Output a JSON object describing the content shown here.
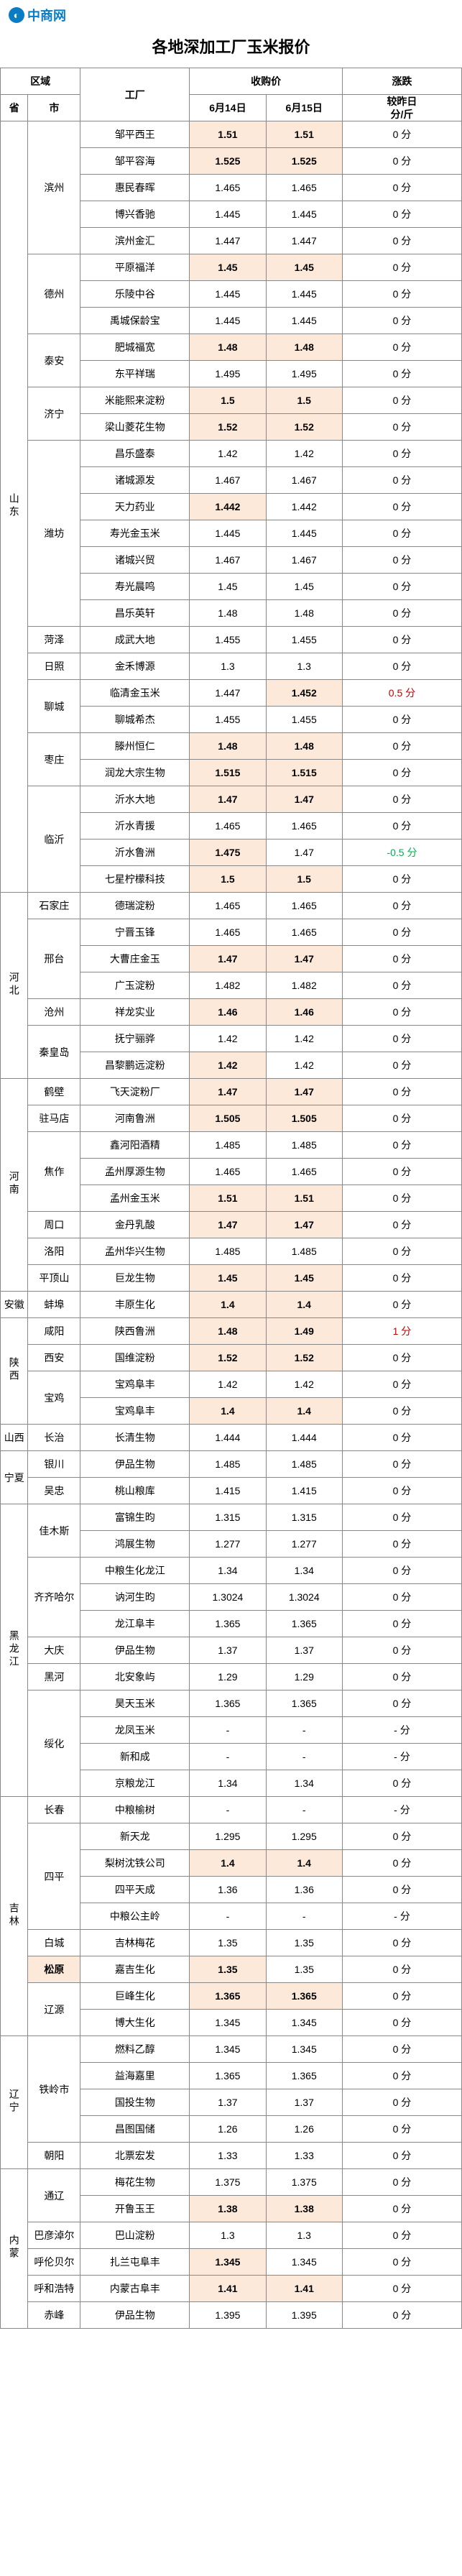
{
  "logo": "中商网",
  "title": "各地深加工厂玉米报价",
  "header": {
    "region": "区域",
    "province": "省",
    "city": "市",
    "factory": "工厂",
    "price": "收购价",
    "date1": "6月14日",
    "date2": "6月15日",
    "change": "涨跌",
    "change_unit": "较昨日\n分/斤"
  },
  "colors": {
    "hl": "#fde9d9",
    "hl2": "#f9dcc7",
    "red": "#c00000",
    "green": "#00b050"
  },
  "rows": [
    {
      "prov": "山东",
      "city": "滨州",
      "fac": "邹平西王",
      "d1": "1.51",
      "d2": "1.51",
      "chg": "0 分",
      "hl": 3
    },
    {
      "fac": "邹平容海",
      "d1": "1.525",
      "d2": "1.525",
      "chg": "0 分",
      "hl": 3
    },
    {
      "fac": "惠民春晖",
      "d1": "1.465",
      "d2": "1.465",
      "chg": "0 分"
    },
    {
      "fac": "博兴香驰",
      "d1": "1.445",
      "d2": "1.445",
      "chg": "0 分"
    },
    {
      "fac": "滨州金汇",
      "d1": "1.447",
      "d2": "1.447",
      "chg": "0 分"
    },
    {
      "city": "德州",
      "fac": "平原福洋",
      "d1": "1.45",
      "d2": "1.45",
      "chg": "0 分",
      "hl": 3
    },
    {
      "fac": "乐陵中谷",
      "d1": "1.445",
      "d2": "1.445",
      "chg": "0 分"
    },
    {
      "fac": "禹城保龄宝",
      "d1": "1.445",
      "d2": "1.445",
      "chg": "0 分"
    },
    {
      "city": "泰安",
      "fac": "肥城福宽",
      "d1": "1.48",
      "d2": "1.48",
      "chg": "0 分",
      "hl": 3
    },
    {
      "fac": "东平祥瑞",
      "d1": "1.495",
      "d2": "1.495",
      "chg": "0 分"
    },
    {
      "city": "济宁",
      "fac": "米能熙来淀粉",
      "d1": "1.5",
      "d2": "1.5",
      "chg": "0 分",
      "hl": 3
    },
    {
      "fac": "梁山菱花生物",
      "d1": "1.52",
      "d2": "1.52",
      "chg": "0 分",
      "hl": 3
    },
    {
      "city": "潍坊",
      "fac": "昌乐盛泰",
      "d1": "1.42",
      "d2": "1.42",
      "chg": "0 分"
    },
    {
      "fac": "诸城源发",
      "d1": "1.467",
      "d2": "1.467",
      "chg": "0 分"
    },
    {
      "fac": "天力药业",
      "d1": "1.442",
      "d2": "1.442",
      "chg": "0 分",
      "hl": 1
    },
    {
      "fac": "寿光金玉米",
      "d1": "1.445",
      "d2": "1.445",
      "chg": "0 分"
    },
    {
      "fac": "诸城兴贸",
      "d1": "1.467",
      "d2": "1.467",
      "chg": "0 分"
    },
    {
      "fac": "寿光晨鸣",
      "d1": "1.45",
      "d2": "1.45",
      "chg": "0 分"
    },
    {
      "fac": "昌乐英轩",
      "d1": "1.48",
      "d2": "1.48",
      "chg": "0 分"
    },
    {
      "city": "菏泽",
      "fac": "成武大地",
      "d1": "1.455",
      "d2": "1.455",
      "chg": "0 分"
    },
    {
      "city": "日照",
      "fac": "金禾博源",
      "d1": "1.3",
      "d2": "1.3",
      "chg": "0 分"
    },
    {
      "city": "聊城",
      "fac": "临清金玉米",
      "d1": "1.447",
      "d2": "1.452",
      "chg": "0.5 分",
      "hl": 2,
      "color": "red"
    },
    {
      "fac": "聊城希杰",
      "d1": "1.455",
      "d2": "1.455",
      "chg": "0 分"
    },
    {
      "city": "枣庄",
      "fac": "滕州恒仁",
      "d1": "1.48",
      "d2": "1.48",
      "chg": "0 分",
      "hl": 3
    },
    {
      "fac": "润龙大宗生物",
      "d1": "1.515",
      "d2": "1.515",
      "chg": "0 分",
      "hl": 3
    },
    {
      "city": "临沂",
      "fac": "沂水大地",
      "d1": "1.47",
      "d2": "1.47",
      "chg": "0 分",
      "hl": 3
    },
    {
      "fac": "沂水青援",
      "d1": "1.465",
      "d2": "1.465",
      "chg": "0 分"
    },
    {
      "fac": "沂水鲁洲",
      "d1": "1.475",
      "d2": "1.47",
      "chg": "-0.5 分",
      "hl": 1,
      "color": "green"
    },
    {
      "fac": "七星柠檬科技",
      "d1": "1.5",
      "d2": "1.5",
      "chg": "0 分",
      "hl": 3
    },
    {
      "prov": "河北",
      "city": "石家庄",
      "fac": "德瑞淀粉",
      "d1": "1.465",
      "d2": "1.465",
      "chg": "0 分"
    },
    {
      "city": "邢台",
      "fac": "宁晋玉锋",
      "d1": "1.465",
      "d2": "1.465",
      "chg": "0 分"
    },
    {
      "fac": "大曹庄金玉",
      "d1": "1.47",
      "d2": "1.47",
      "chg": "0 分",
      "hl": 3
    },
    {
      "fac": "广玉淀粉",
      "d1": "1.482",
      "d2": "1.482",
      "chg": "0 分"
    },
    {
      "city": "沧州",
      "fac": "祥龙实业",
      "d1": "1.46",
      "d2": "1.46",
      "chg": "0 分",
      "hl": 3
    },
    {
      "city": "秦皇岛",
      "fac": "抚宁骊骅",
      "d1": "1.42",
      "d2": "1.42",
      "chg": "0 分"
    },
    {
      "fac": "昌黎鹏远淀粉",
      "d1": "1.42",
      "d2": "1.42",
      "chg": "0 分",
      "hl": 1
    },
    {
      "prov": "河南",
      "city": "鹤壁",
      "fac": "飞天淀粉厂",
      "d1": "1.47",
      "d2": "1.47",
      "chg": "0 分",
      "hl": 3
    },
    {
      "city": "驻马店",
      "fac": "河南鲁洲",
      "d1": "1.505",
      "d2": "1.505",
      "chg": "0 分",
      "hl": 3
    },
    {
      "city": "焦作",
      "fac": "鑫河阳酒精",
      "d1": "1.485",
      "d2": "1.485",
      "chg": "0 分"
    },
    {
      "fac": "孟州厚源生物",
      "d1": "1.465",
      "d2": "1.465",
      "chg": "0 分"
    },
    {
      "fac": "孟州金玉米",
      "d1": "1.51",
      "d2": "1.51",
      "chg": "0 分",
      "hl": 3
    },
    {
      "city": "周口",
      "fac": "金丹乳酸",
      "d1": "1.47",
      "d2": "1.47",
      "chg": "0 分",
      "hl": 3
    },
    {
      "city": "洛阳",
      "fac": "孟州华兴生物",
      "d1": "1.485",
      "d2": "1.485",
      "chg": "0 分"
    },
    {
      "city": "平顶山",
      "fac": "巨龙生物",
      "d1": "1.45",
      "d2": "1.45",
      "chg": "0 分",
      "hl": 3
    },
    {
      "prov": "安徽",
      "city": "蚌埠",
      "fac": "丰原生化",
      "d1": "1.4",
      "d2": "1.4",
      "chg": "0 分",
      "hl": 3
    },
    {
      "prov": "陕西",
      "city": "咸阳",
      "fac": "陕西鲁洲",
      "d1": "1.48",
      "d2": "1.49",
      "chg": "1 分",
      "hl": 3,
      "color": "red"
    },
    {
      "city": "西安",
      "fac": "国维淀粉",
      "d1": "1.52",
      "d2": "1.52",
      "chg": "0 分",
      "hl": 3
    },
    {
      "city": "宝鸡",
      "fac": "宝鸡阜丰",
      "d1": "1.42",
      "d2": "1.42",
      "chg": "0 分"
    },
    {
      "fac": "宝鸡阜丰",
      "d1": "1.4",
      "d2": "1.4",
      "chg": "0 分",
      "hl": 3
    },
    {
      "prov": "山西",
      "city": "长治",
      "fac": "长清生物",
      "d1": "1.444",
      "d2": "1.444",
      "chg": "0 分"
    },
    {
      "prov": "宁夏",
      "city": "银川",
      "fac": "伊品生物",
      "d1": "1.485",
      "d2": "1.485",
      "chg": "0 分"
    },
    {
      "city": "吴忠",
      "fac": "桃山粮库",
      "d1": "1.415",
      "d2": "1.415",
      "chg": "0 分"
    },
    {
      "prov": "黑龙江",
      "city": "佳木斯",
      "fac": "富锦生昀",
      "d1": "1.315",
      "d2": "1.315",
      "chg": "0 分"
    },
    {
      "fac": "鸿展生物",
      "d1": "1.277",
      "d2": "1.277",
      "chg": "0 分"
    },
    {
      "city": "齐齐哈尔",
      "fac": "中粮生化龙江",
      "d1": "1.34",
      "d2": "1.34",
      "chg": "0 分"
    },
    {
      "fac": "讷河生昀",
      "d1": "1.3024",
      "d2": "1.3024",
      "chg": "0 分"
    },
    {
      "fac": "龙江阜丰",
      "d1": "1.365",
      "d2": "1.365",
      "chg": "0 分"
    },
    {
      "city": "大庆",
      "fac": "伊品生物",
      "d1": "1.37",
      "d2": "1.37",
      "chg": "0 分"
    },
    {
      "city": "黑河",
      "fac": "北安象屿",
      "d1": "1.29",
      "d2": "1.29",
      "chg": "0 分"
    },
    {
      "city": "绥化",
      "fac": "昊天玉米",
      "d1": "1.365",
      "d2": "1.365",
      "chg": "0 分"
    },
    {
      "fac": "龙凤玉米",
      "d1": "-",
      "d2": "-",
      "chg": "- 分"
    },
    {
      "fac": "新和成",
      "d1": "-",
      "d2": "-",
      "chg": "- 分"
    },
    {
      "fac": "京粮龙江",
      "d1": "1.34",
      "d2": "1.34",
      "chg": "0 分"
    },
    {
      "prov": "吉林",
      "city": "长春",
      "fac": "中粮榆树",
      "d1": "-",
      "d2": "-",
      "chg": "- 分"
    },
    {
      "city": "四平",
      "fac": "新天龙",
      "d1": "1.295",
      "d2": "1.295",
      "chg": "0 分"
    },
    {
      "fac": "梨树沈铁公司",
      "d1": "1.4",
      "d2": "1.4",
      "chg": "0 分",
      "hl": 3
    },
    {
      "fac": "四平天成",
      "d1": "1.36",
      "d2": "1.36",
      "chg": "0 分"
    },
    {
      "fac": "中粮公主岭",
      "d1": "-",
      "d2": "-",
      "chg": "- 分"
    },
    {
      "city": "白城",
      "fac": "吉林梅花",
      "d1": "1.35",
      "d2": "1.35",
      "chg": "0 分"
    },
    {
      "city": "松原",
      "fac": "嘉吉生化",
      "d1": "1.35",
      "d2": "1.35",
      "chg": "0 分",
      "hl": 1,
      "cityhl": true
    },
    {
      "city": "辽源",
      "fac": "巨峰生化",
      "d1": "1.365",
      "d2": "1.365",
      "chg": "0 分",
      "hl": 3
    },
    {
      "fac": "博大生化",
      "d1": "1.345",
      "d2": "1.345",
      "chg": "0 分"
    },
    {
      "prov": "辽宁",
      "city": "铁岭市",
      "fac": "燃料乙醇",
      "d1": "1.345",
      "d2": "1.345",
      "chg": "0 分"
    },
    {
      "fac": "益海嘉里",
      "d1": "1.365",
      "d2": "1.365",
      "chg": "0 分"
    },
    {
      "fac": "国投生物",
      "d1": "1.37",
      "d2": "1.37",
      "chg": "0 分"
    },
    {
      "fac": "昌图国储",
      "d1": "1.26",
      "d2": "1.26",
      "chg": "0 分"
    },
    {
      "city": "朝阳",
      "fac": "北票宏发",
      "d1": "1.33",
      "d2": "1.33",
      "chg": "0 分"
    },
    {
      "prov": "内蒙",
      "city": "通辽",
      "fac": "梅花生物",
      "d1": "1.375",
      "d2": "1.375",
      "chg": "0 分"
    },
    {
      "fac": "开鲁玉王",
      "d1": "1.38",
      "d2": "1.38",
      "chg": "0 分",
      "hl": 3
    },
    {
      "city": "巴彦淖尔",
      "fac": "巴山淀粉",
      "d1": "1.3",
      "d2": "1.3",
      "chg": "0 分"
    },
    {
      "city": "呼伦贝尔",
      "fac": "扎兰屯阜丰",
      "d1": "1.345",
      "d2": "1.345",
      "chg": "0 分",
      "hl": 1
    },
    {
      "city": "呼和浩特",
      "fac": "内蒙古阜丰",
      "d1": "1.41",
      "d2": "1.41",
      "chg": "0 分",
      "hl": 3
    },
    {
      "city": "赤峰",
      "fac": "伊品生物",
      "d1": "1.395",
      "d2": "1.395",
      "chg": "0 分"
    }
  ],
  "provinces": [
    {
      "name": "山东",
      "rows": 29
    },
    {
      "name": "河北",
      "rows": 7
    },
    {
      "name": "河南",
      "rows": 8
    },
    {
      "name": "安徽",
      "rows": 1
    },
    {
      "name": "陕西",
      "rows": 4
    },
    {
      "name": "山西",
      "rows": 1
    },
    {
      "name": "宁夏",
      "rows": 2
    },
    {
      "name": "黑龙江",
      "rows": 11
    },
    {
      "name": "吉林",
      "rows": 9
    },
    {
      "name": "辽宁",
      "rows": 5
    },
    {
      "name": "内蒙",
      "rows": 6
    }
  ],
  "cities": [
    {
      "name": "滨州",
      "rows": 5
    },
    {
      "name": "德州",
      "rows": 3
    },
    {
      "name": "泰安",
      "rows": 2
    },
    {
      "name": "济宁",
      "rows": 2
    },
    {
      "name": "潍坊",
      "rows": 7
    },
    {
      "name": "菏泽",
      "rows": 1
    },
    {
      "name": "日照",
      "rows": 1
    },
    {
      "name": "聊城",
      "rows": 2
    },
    {
      "name": "枣庄",
      "rows": 2
    },
    {
      "name": "临沂",
      "rows": 4
    },
    {
      "name": "石家庄",
      "rows": 1
    },
    {
      "name": "邢台",
      "rows": 3
    },
    {
      "name": "沧州",
      "rows": 1
    },
    {
      "name": "秦皇岛",
      "rows": 2
    },
    {
      "name": "鹤壁",
      "rows": 1
    },
    {
      "name": "驻马店",
      "rows": 1
    },
    {
      "name": "焦作",
      "rows": 3
    },
    {
      "name": "周口",
      "rows": 1
    },
    {
      "name": "洛阳",
      "rows": 1
    },
    {
      "name": "平顶山",
      "rows": 1
    },
    {
      "name": "蚌埠",
      "rows": 1
    },
    {
      "name": "咸阳",
      "rows": 1
    },
    {
      "name": "西安",
      "rows": 1
    },
    {
      "name": "宝鸡",
      "rows": 2
    },
    {
      "name": "长治",
      "rows": 1
    },
    {
      "name": "银川",
      "rows": 1
    },
    {
      "name": "吴忠",
      "rows": 1
    },
    {
      "name": "佳木斯",
      "rows": 2
    },
    {
      "name": "齐齐哈尔",
      "rows": 3
    },
    {
      "name": "大庆",
      "rows": 1
    },
    {
      "name": "黑河",
      "rows": 1
    },
    {
      "name": "绥化",
      "rows": 4
    },
    {
      "name": "长春",
      "rows": 1
    },
    {
      "name": "四平",
      "rows": 4
    },
    {
      "name": "白城",
      "rows": 1
    },
    {
      "name": "松原",
      "rows": 1,
      "hl": true
    },
    {
      "name": "辽源",
      "rows": 2
    },
    {
      "name": "铁岭市",
      "rows": 4
    },
    {
      "name": "朝阳",
      "rows": 1
    },
    {
      "name": "通辽",
      "rows": 2
    },
    {
      "name": "巴彦淖尔",
      "rows": 1
    },
    {
      "name": "呼伦贝尔",
      "rows": 1
    },
    {
      "name": "呼和浩特",
      "rows": 1
    },
    {
      "name": "赤峰",
      "rows": 1
    }
  ]
}
